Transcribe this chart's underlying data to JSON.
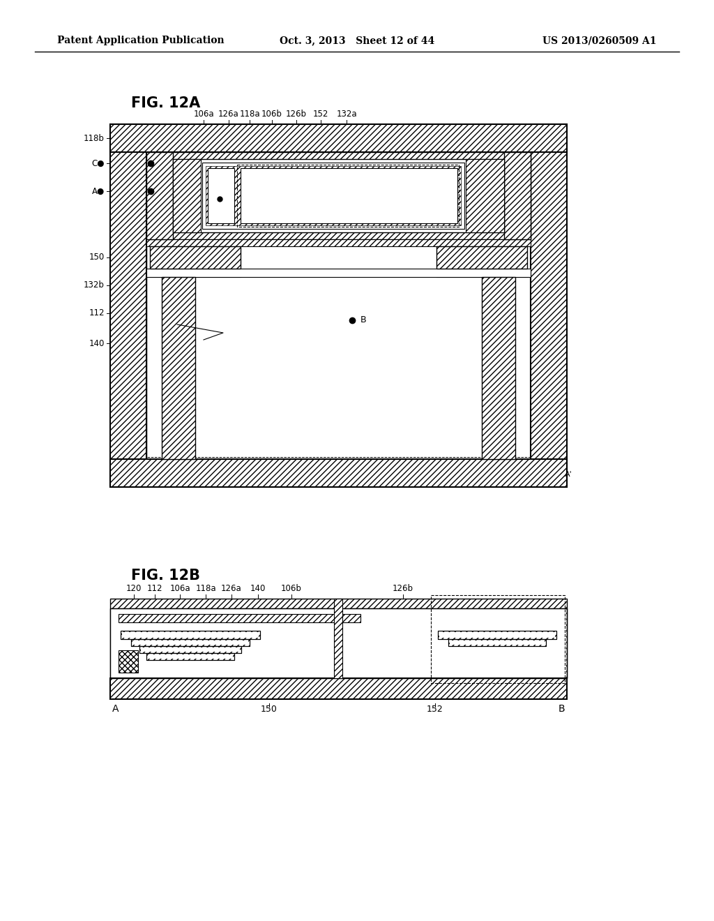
{
  "header_left": "Patent Application Publication",
  "header_mid": "Oct. 3, 2013   Sheet 12 of 44",
  "header_right": "US 2013/0260509 A1",
  "fig12a_title": "FIG. 12A",
  "fig12b_title": "FIG. 12B",
  "bg_color": "#ffffff",
  "line_color": "#000000",
  "labels_12a_top": [
    "106a",
    "126a",
    "118a",
    "106b",
    "126b",
    "152",
    "132a"
  ],
  "labels_12b_top": [
    "120",
    "112",
    "106a",
    "118a",
    "126a",
    "140",
    "106b",
    "126b"
  ]
}
